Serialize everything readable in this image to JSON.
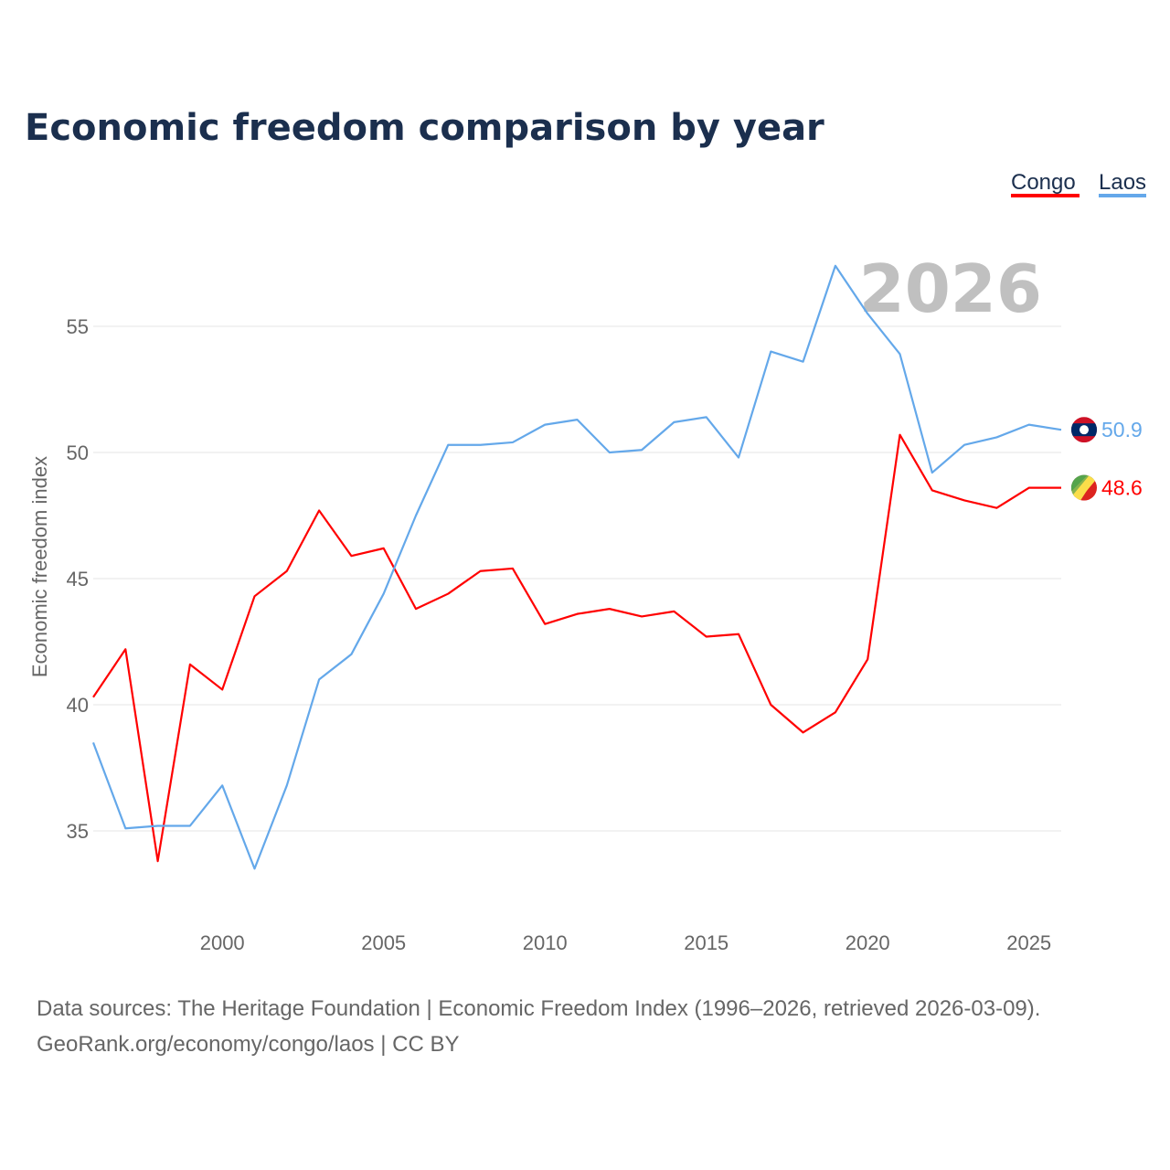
{
  "title": "Economic freedom comparison by year",
  "year_watermark": "2026",
  "source_line1": "Data sources: The Heritage Foundation | Economic Freedom Index (1996–2026, retrieved 2026-03-09).",
  "source_line2": "GeoRank.org/economy/congo/laos | CC BY",
  "chart_data": {
    "type": "line",
    "title": "Economic freedom comparison by year",
    "xlabel": "",
    "ylabel": "Economic freedom index",
    "xlim": [
      1996,
      2026
    ],
    "ylim": [
      31.5,
      59
    ],
    "xticks": [
      2000,
      2005,
      2010,
      2015,
      2020,
      2025
    ],
    "yticks": [
      35,
      40,
      45,
      50,
      55
    ],
    "grid": true,
    "legend_position": "top-right",
    "x": [
      1996,
      1997,
      1998,
      1999,
      2000,
      2001,
      2002,
      2003,
      2004,
      2005,
      2006,
      2007,
      2008,
      2009,
      2010,
      2011,
      2012,
      2013,
      2014,
      2015,
      2016,
      2017,
      2018,
      2019,
      2020,
      2021,
      2022,
      2023,
      2024,
      2025,
      2026
    ],
    "series": [
      {
        "name": "Congo",
        "color": "#ff0000",
        "end_label": "48.6",
        "flag": "congo-flag",
        "values": [
          40.3,
          42.2,
          33.8,
          41.6,
          40.6,
          44.3,
          45.3,
          47.7,
          45.9,
          46.2,
          43.8,
          44.4,
          45.3,
          45.4,
          43.2,
          43.6,
          43.8,
          43.5,
          43.7,
          42.7,
          42.8,
          40.0,
          38.9,
          39.7,
          41.8,
          50.7,
          48.5,
          48.1,
          47.8,
          48.6,
          48.6
        ]
      },
      {
        "name": "Laos",
        "color": "#64a8ea",
        "end_label": "50.9",
        "flag": "laos-flag",
        "values": [
          38.5,
          35.1,
          35.2,
          35.2,
          36.8,
          33.5,
          36.8,
          41.0,
          42.0,
          44.4,
          47.5,
          50.3,
          50.3,
          50.4,
          51.1,
          51.3,
          50.0,
          50.1,
          51.2,
          51.4,
          49.8,
          54.0,
          53.6,
          57.4,
          55.5,
          53.9,
          49.2,
          50.3,
          50.6,
          51.1,
          50.9
        ]
      }
    ]
  }
}
